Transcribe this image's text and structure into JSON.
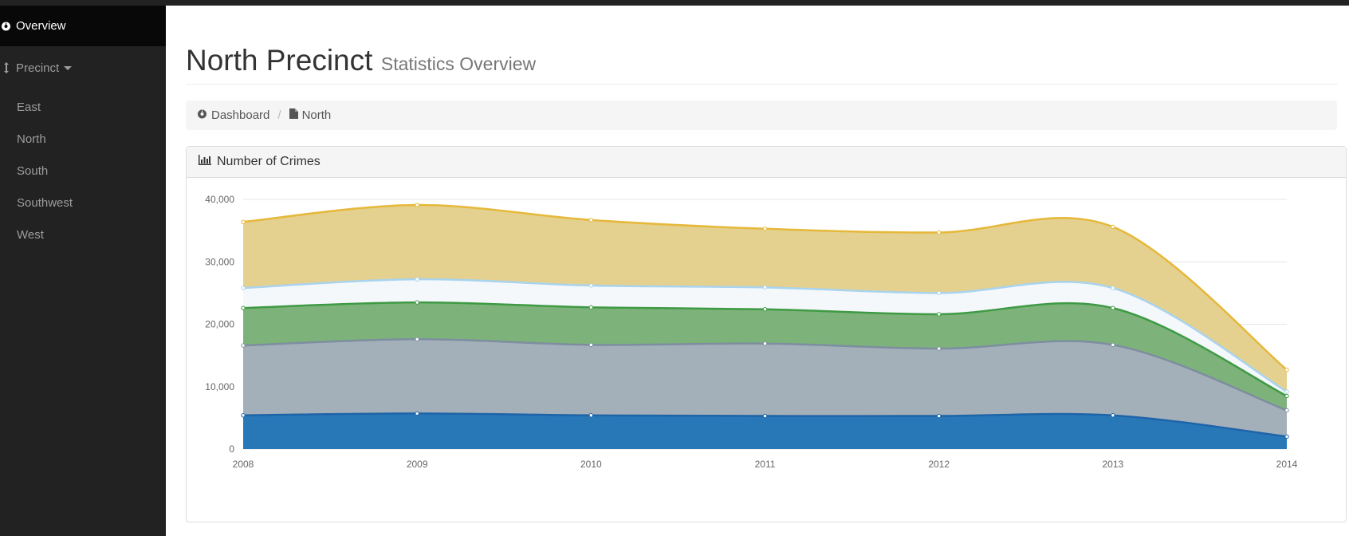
{
  "sidebar": {
    "overview_label": "Overview",
    "precinct_label": "Precinct",
    "items": [
      {
        "label": "East"
      },
      {
        "label": "North"
      },
      {
        "label": "South"
      },
      {
        "label": "Southwest"
      },
      {
        "label": "West"
      }
    ]
  },
  "header": {
    "title": "North Precinct",
    "subtitle": "Statistics Overview"
  },
  "breadcrumb": {
    "dashboard_label": "Dashboard",
    "current_label": "North"
  },
  "panel": {
    "title": "Number of Crimes"
  },
  "chart_data": {
    "type": "area",
    "stacked": true,
    "x": [
      "2008",
      "2009",
      "2010",
      "2011",
      "2012",
      "2013",
      "2014"
    ],
    "ylim": [
      0,
      40000
    ],
    "yticks": [
      "0",
      "10,000",
      "20,000",
      "30,000",
      "40,000"
    ],
    "grid": true,
    "series": [
      {
        "values": [
          5400,
          5700,
          5400,
          5300,
          5300,
          5400,
          2000
        ],
        "color": "#2878b8"
      },
      {
        "values": [
          11200,
          11900,
          11300,
          11600,
          10800,
          11300,
          4200
        ],
        "color": "#a4b0b9"
      },
      {
        "values": [
          6000,
          5900,
          6000,
          5500,
          5500,
          5900,
          2300
        ],
        "color": "#7db37a"
      },
      {
        "values": [
          3200,
          3700,
          3500,
          3500,
          3400,
          3200,
          700
        ],
        "color": "#f4f8fb"
      },
      {
        "values": [
          10600,
          11900,
          10500,
          9400,
          9700,
          9800,
          3500
        ],
        "color": "#e4d190"
      }
    ],
    "stroke_colors": [
      "#1e64a8",
      "#7d8ea0",
      "#3f9a44",
      "#a9d3ee",
      "#e6b83a"
    ]
  }
}
